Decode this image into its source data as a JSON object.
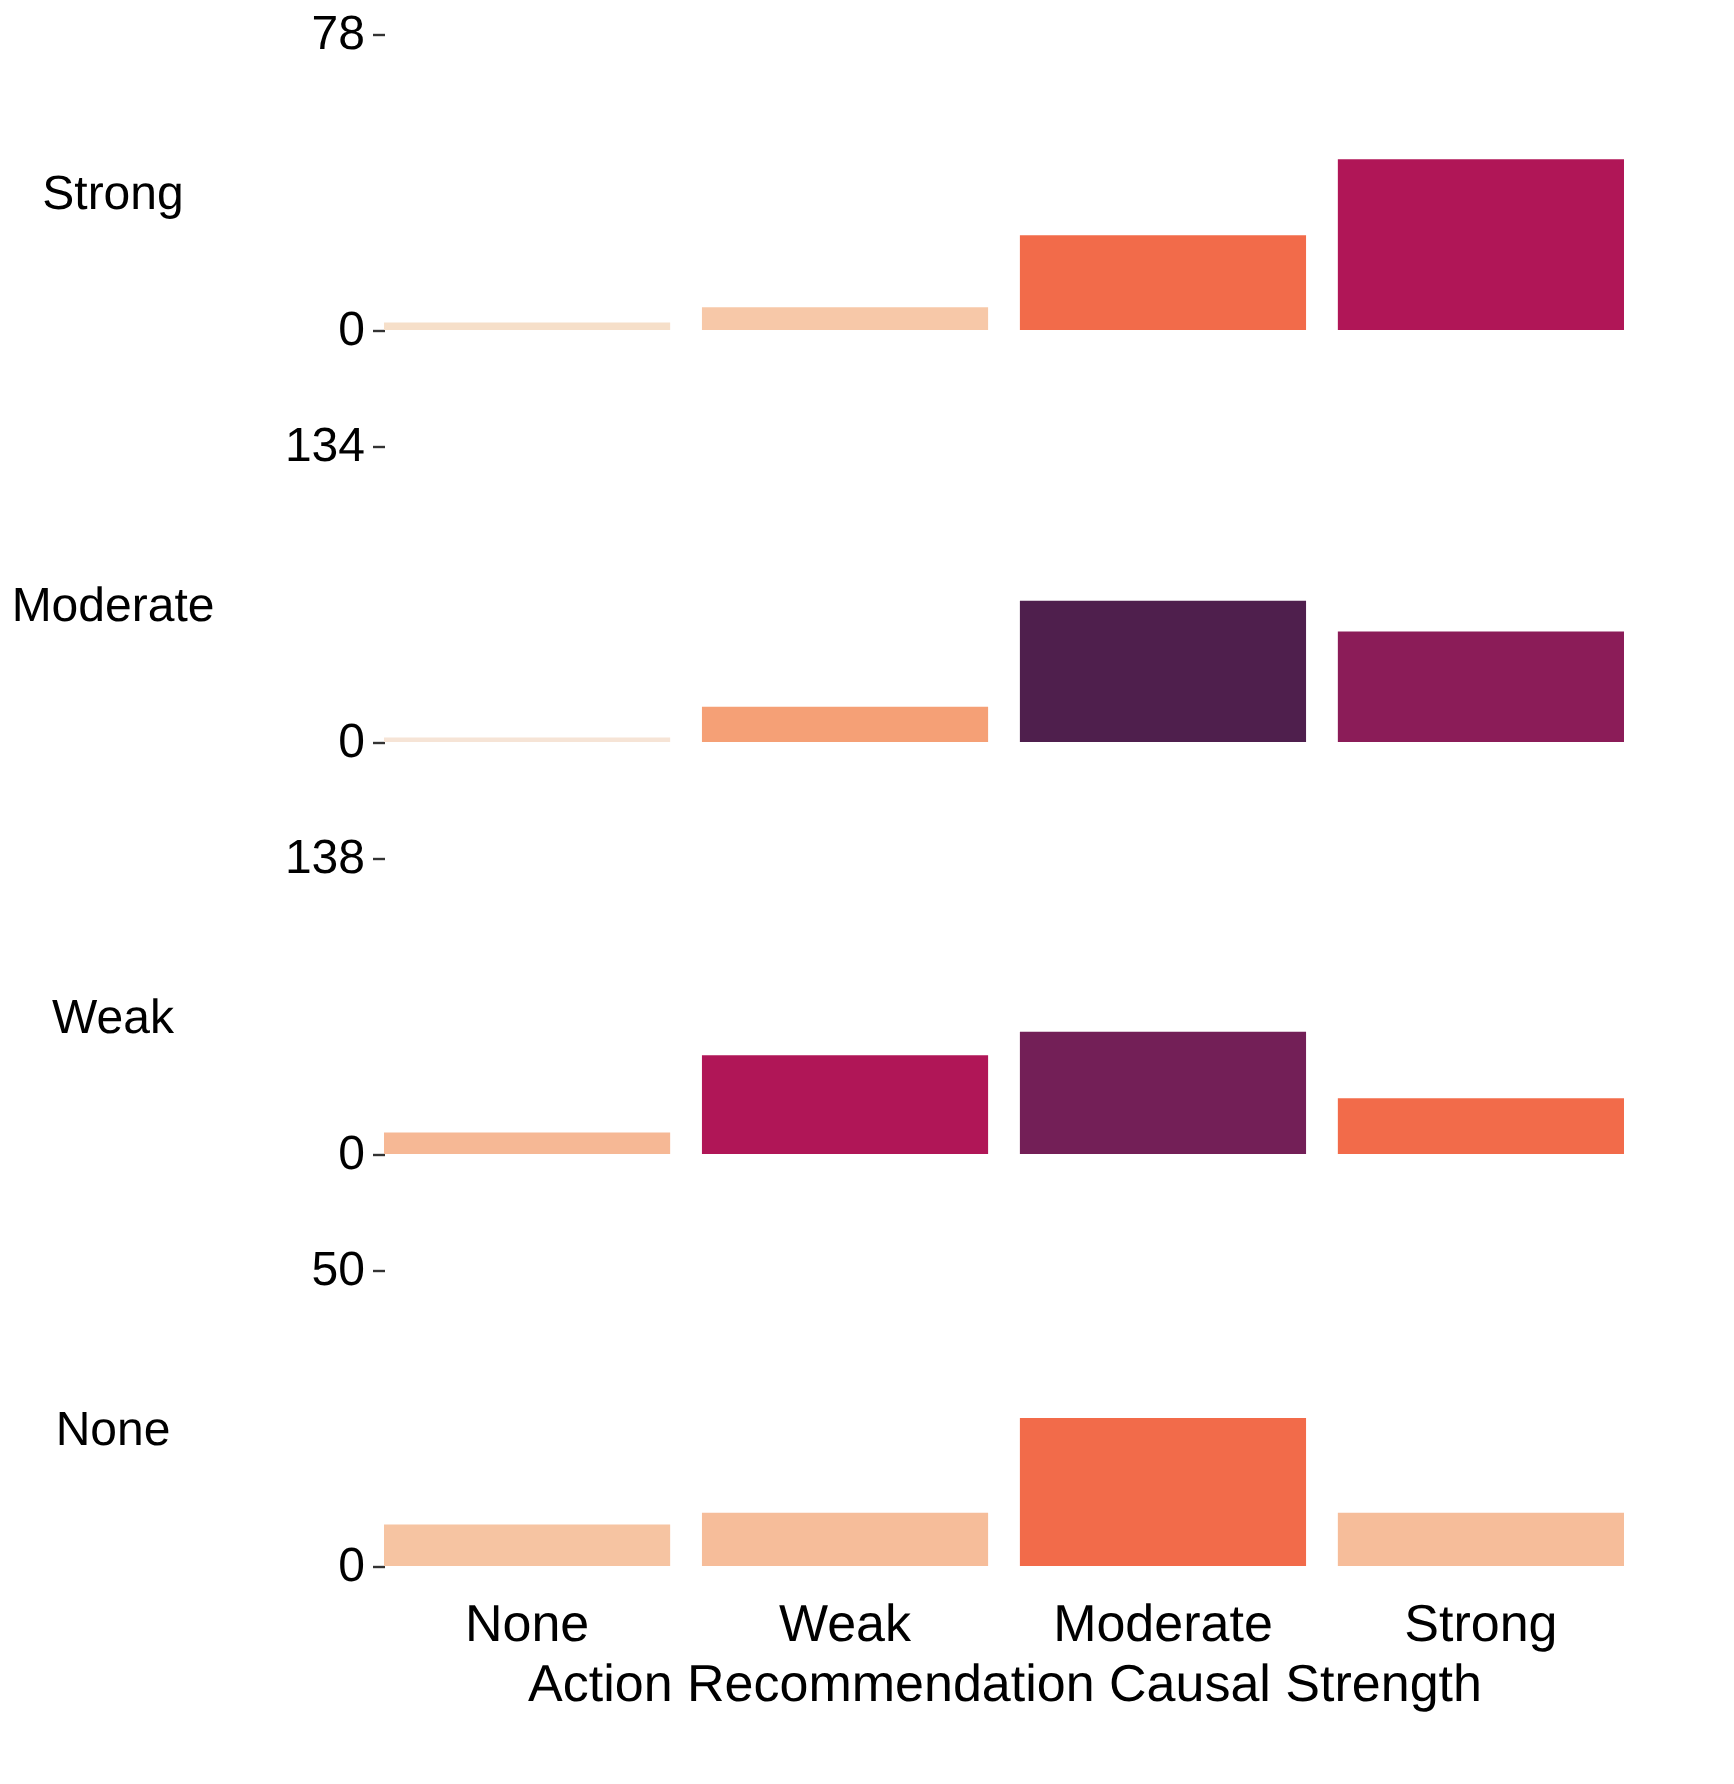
{
  "chart_data": [
    {
      "type": "bar",
      "ylabel": "Strong",
      "categories": [
        null,
        null,
        null,
        null
      ],
      "values": [
        2,
        6,
        25,
        45
      ],
      "colors": [
        "#f6dfc9",
        "#f7c8a8",
        "#f26b4a",
        "#b01657"
      ],
      "ylim": [
        0,
        78
      ],
      "yticks": [
        0,
        78
      ],
      "tick_labels": "y",
      "grid": false
    },
    {
      "type": "bar",
      "ylabel": "Moderate",
      "categories": [
        null,
        null,
        null,
        null
      ],
      "values": [
        2,
        16,
        64,
        50
      ],
      "colors": [
        "#f6e4d6",
        "#f5a076",
        "#4f1f4d",
        "#8b1c58"
      ],
      "ylim": [
        0,
        134
      ],
      "yticks": [
        0,
        134
      ],
      "tick_labels": "y",
      "grid": false
    },
    {
      "type": "bar",
      "ylabel": "Weak",
      "categories": [
        null,
        null,
        null,
        null
      ],
      "values": [
        10,
        46,
        57,
        26
      ],
      "colors": [
        "#f6b895",
        "#b01657",
        "#731f57",
        "#f26b4a"
      ],
      "ylim": [
        0,
        138
      ],
      "yticks": [
        0,
        138
      ],
      "tick_labels": "y",
      "grid": false
    },
    {
      "type": "bar",
      "ylabel": "None",
      "xlabel": "Action Recommendation Causal Strength",
      "categories": [
        "None",
        "Weak",
        "Moderate",
        "Strong"
      ],
      "values": [
        7,
        9,
        25,
        9
      ],
      "colors": [
        "#f6c4a2",
        "#f6bd9a",
        "#f26b4a",
        "#f6bd9a"
      ],
      "ylim": [
        0,
        50
      ],
      "yticks": [
        0,
        50
      ],
      "grid": false
    }
  ]
}
